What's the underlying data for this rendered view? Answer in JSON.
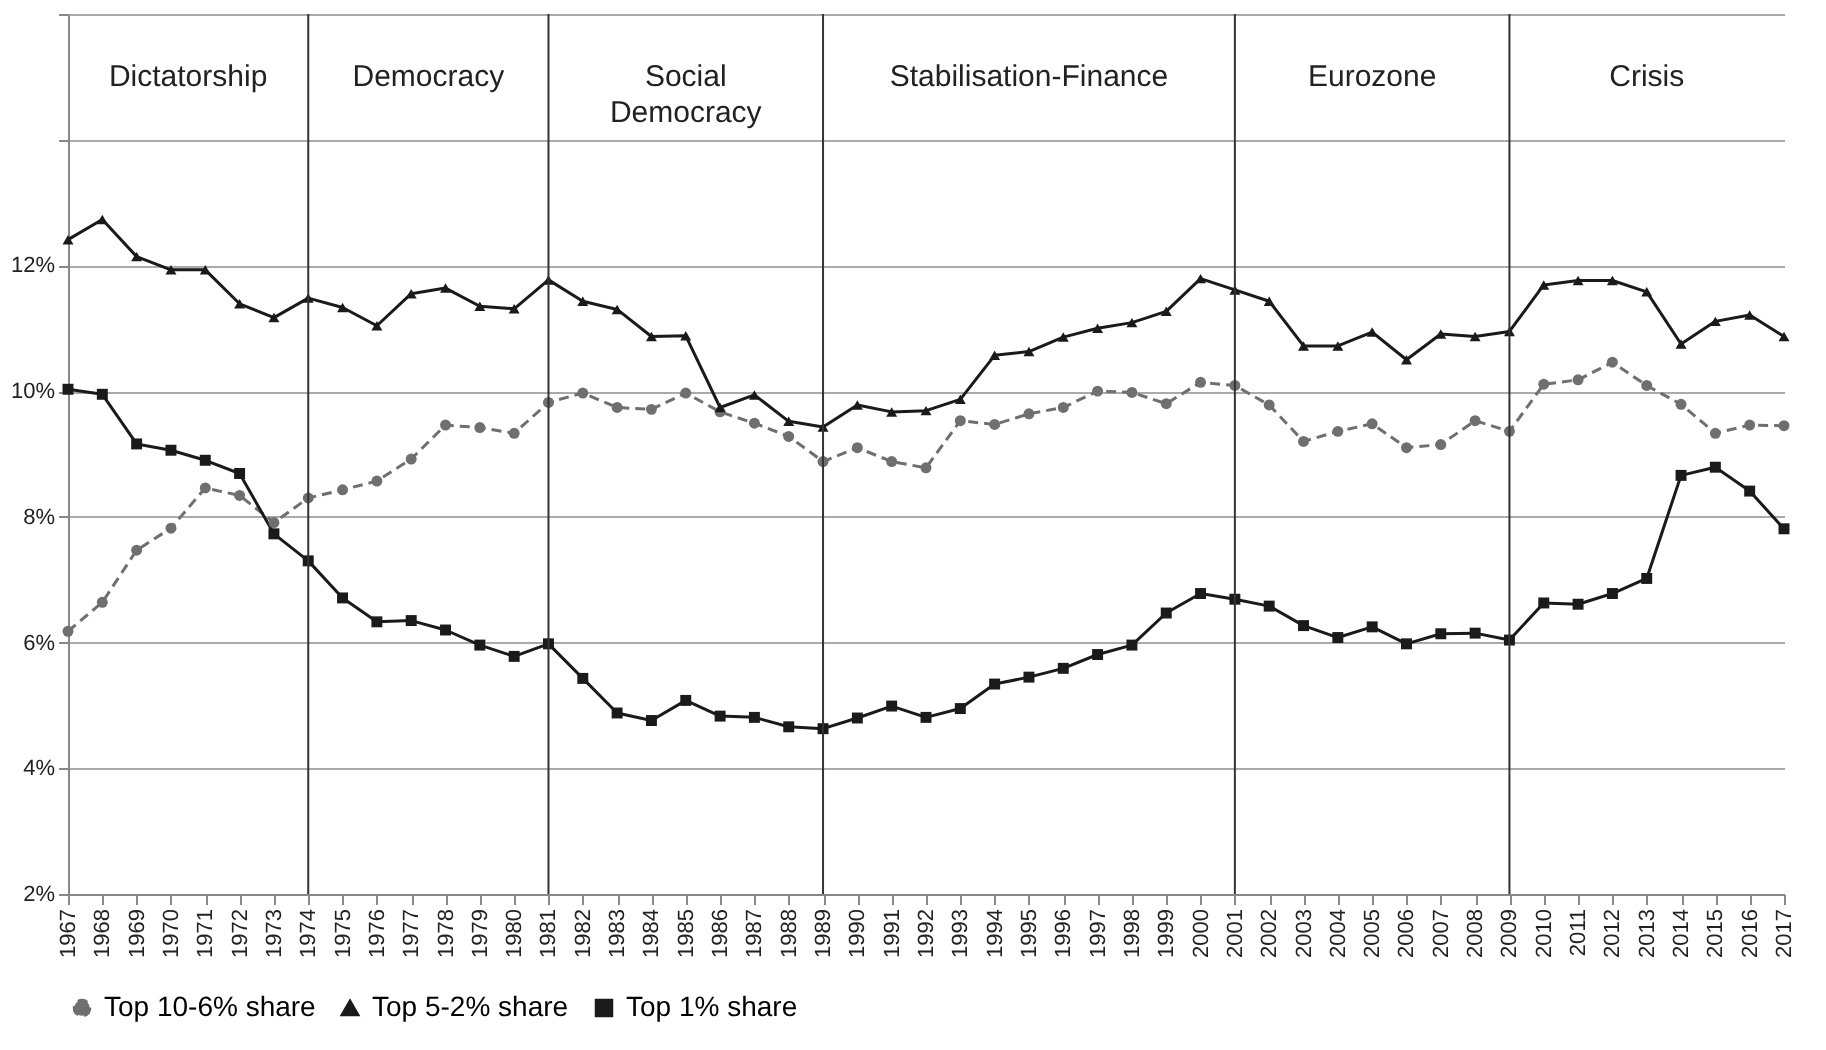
{
  "chart_data": {
    "type": "line",
    "categories": [
      "1967",
      "1968",
      "1969",
      "1970",
      "1971",
      "1972",
      "1973",
      "1974",
      "1975",
      "1976",
      "1977",
      "1978",
      "1979",
      "1980",
      "1981",
      "1982",
      "1983",
      "1984",
      "1985",
      "1986",
      "1987",
      "1988",
      "1989",
      "1990",
      "1991",
      "1992",
      "1993",
      "1994",
      "1995",
      "1996",
      "1997",
      "1998",
      "1999",
      "2000",
      "2001",
      "2002",
      "2003",
      "2004",
      "2005",
      "2006",
      "2007",
      "2008",
      "2009",
      "2010",
      "2011",
      "2012",
      "2013",
      "2014",
      "2015",
      "2016",
      "2017"
    ],
    "series": [
      {
        "name": "Top 10-6% share",
        "color": "#6f6f6f",
        "marker": "circle",
        "line_style": "dashed",
        "values": [
          6.18,
          6.64,
          7.47,
          7.82,
          8.46,
          8.34,
          7.91,
          8.3,
          8.43,
          8.57,
          8.92,
          9.46,
          9.42,
          9.33,
          9.82,
          9.97,
          9.74,
          9.71,
          9.97,
          9.67,
          9.49,
          9.28,
          8.88,
          9.1,
          8.88,
          8.78,
          9.53,
          9.47,
          9.64,
          9.74,
          10.0,
          9.98,
          9.8,
          10.14,
          10.09,
          9.78,
          9.2,
          9.36,
          9.48,
          9.1,
          9.15,
          9.53,
          9.36,
          10.11,
          10.18,
          10.46,
          10.09,
          9.79,
          9.33,
          9.46,
          9.45
        ]
      },
      {
        "name": "Top 5-2% share",
        "color": "#1a1a1a",
        "marker": "triangle",
        "line_style": "solid",
        "values": [
          12.41,
          12.73,
          12.14,
          11.93,
          11.93,
          11.39,
          11.17,
          11.48,
          11.33,
          11.04,
          11.55,
          11.64,
          11.35,
          11.31,
          11.77,
          11.43,
          11.3,
          10.87,
          10.88,
          9.74,
          9.94,
          9.52,
          9.43,
          9.78,
          9.67,
          9.69,
          9.87,
          10.57,
          10.63,
          10.86,
          11.0,
          11.09,
          11.27,
          11.79,
          11.61,
          11.43,
          10.72,
          10.72,
          10.94,
          10.5,
          10.91,
          10.87,
          10.95,
          11.69,
          11.76,
          11.76,
          11.58,
          10.75,
          11.11,
          11.21,
          10.87
        ]
      },
      {
        "name": "Top 1% share",
        "color": "#1a1a1a",
        "marker": "square",
        "line_style": "solid",
        "values": [
          10.03,
          9.95,
          9.16,
          9.06,
          8.9,
          8.69,
          7.73,
          7.3,
          6.71,
          6.33,
          6.35,
          6.2,
          5.96,
          5.78,
          5.98,
          5.43,
          4.88,
          4.76,
          5.08,
          4.83,
          4.81,
          4.66,
          4.63,
          4.8,
          4.99,
          4.81,
          4.95,
          5.34,
          5.45,
          5.59,
          5.81,
          5.96,
          6.47,
          6.78,
          6.69,
          6.58,
          6.27,
          6.08,
          6.25,
          5.98,
          6.14,
          6.15,
          6.04,
          6.63,
          6.61,
          6.78,
          7.02,
          8.66,
          8.79,
          8.41,
          7.81
        ]
      }
    ],
    "ylim": [
      2,
      16
    ],
    "yticks": [
      {
        "value": 2,
        "label": "2%"
      },
      {
        "value": 4,
        "label": "4%"
      },
      {
        "value": 6,
        "label": "6%"
      },
      {
        "value": 8,
        "label": "8%"
      },
      {
        "value": 10,
        "label": "10%"
      },
      {
        "value": 12,
        "label": "12%"
      },
      {
        "value": 14,
        "label": null
      },
      {
        "value": 16,
        "label": null
      }
    ],
    "ref_lines": [
      {
        "axis": "x",
        "value": "1974"
      },
      {
        "axis": "x",
        "value": "1981"
      },
      {
        "axis": "x",
        "value": "1989"
      },
      {
        "axis": "x",
        "value": "2001"
      },
      {
        "axis": "x",
        "value": "2009"
      }
    ],
    "annotations": [
      "Dictatorship",
      "Democracy",
      "Social Democracy",
      "Stabilisation-Finance",
      "Eurozone",
      "Crisis"
    ],
    "grid": "y",
    "legend": "bottom"
  }
}
